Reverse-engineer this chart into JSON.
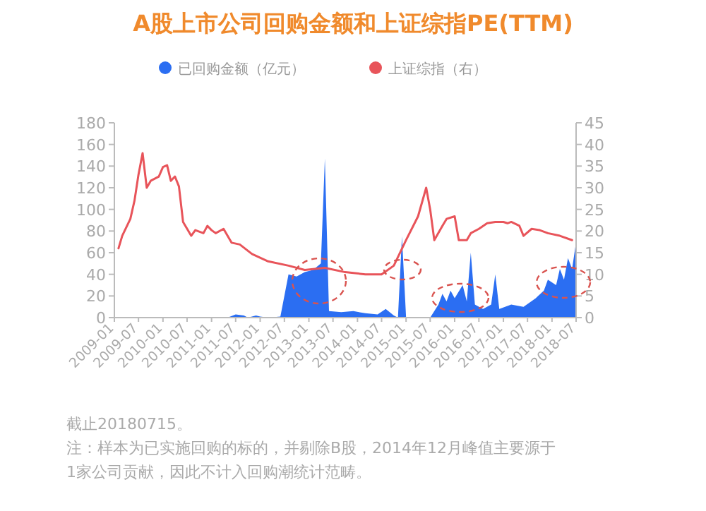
{
  "chart_data": {
    "type": "area",
    "title": "A股上市公司回购金额和上证综指PE(TTM)",
    "legend": "top",
    "xlim": [
      "2009-01",
      "2018-07"
    ],
    "xticks": [
      "2009-01",
      "2009-07",
      "2010-01",
      "2010-07",
      "2011-01",
      "2011-07",
      "2012-01",
      "2012-07",
      "2013-01",
      "2013-07",
      "2014-01",
      "2014-07",
      "2015-01",
      "2015-07",
      "2016-01",
      "2016-07",
      "2017-01",
      "2017-07",
      "2018-01",
      "2018-07"
    ],
    "ylim": [
      0,
      180
    ],
    "yticks": [
      0,
      20,
      40,
      60,
      80,
      100,
      120,
      140,
      160,
      180
    ],
    "y2lim": [
      0,
      45
    ],
    "y2ticks": [
      0,
      5,
      10,
      15,
      20,
      25,
      30,
      35,
      40,
      45
    ],
    "series": [
      {
        "name": "已回购金额（亿元）",
        "color": "#2b6ef2",
        "x": [
          "2009-01",
          "2011-05",
          "2011-07",
          "2011-09",
          "2011-10",
          "2011-12",
          "2012-01",
          "2012-03",
          "2012-06",
          "2012-08",
          "2012-10",
          "2012-12",
          "2013-02",
          "2013-04",
          "2013-05",
          "2013-06",
          "2013-09",
          "2013-12",
          "2014-03",
          "2014-06",
          "2014-08",
          "2014-10",
          "2014-11",
          "2014-12",
          "2015-01",
          "2015-07",
          "2015-09",
          "2015-10",
          "2015-11",
          "2015-12",
          "2016-01",
          "2016-03",
          "2016-04",
          "2016-05",
          "2016-06",
          "2016-08",
          "2016-10",
          "2016-11",
          "2016-12",
          "2017-03",
          "2017-06",
          "2017-09",
          "2017-11",
          "2017-12",
          "2018-02",
          "2018-03",
          "2018-04",
          "2018-05",
          "2018-06",
          "2018-07"
        ],
        "values": [
          0,
          0,
          3,
          2,
          0,
          2,
          1,
          0,
          1,
          40,
          38,
          42,
          44,
          50,
          147,
          6,
          5,
          6,
          4,
          3,
          8,
          2,
          0,
          75,
          0,
          0,
          12,
          22,
          15,
          25,
          18,
          30,
          15,
          60,
          12,
          8,
          12,
          40,
          8,
          12,
          10,
          18,
          25,
          35,
          30,
          45,
          35,
          55,
          45,
          70
        ]
      },
      {
        "type": "line",
        "name": "上证综指（右）",
        "color": "#e8545a",
        "axis": "y2",
        "x": [
          "2009-02",
          "2009-03",
          "2009-05",
          "2009-06",
          "2009-07",
          "2009-08",
          "2009-09",
          "2009-10",
          "2009-12",
          "2010-01",
          "2010-02",
          "2010-03",
          "2010-04",
          "2010-05",
          "2010-06",
          "2010-08",
          "2010-09",
          "2010-11",
          "2010-12",
          "2011-01",
          "2011-02",
          "2011-04",
          "2011-06",
          "2011-08",
          "2011-11",
          "2012-03",
          "2012-08",
          "2012-12",
          "2013-05",
          "2013-10",
          "2014-03",
          "2014-07",
          "2014-10",
          "2015-01",
          "2015-04",
          "2015-06",
          "2015-07",
          "2015-08",
          "2015-10",
          "2015-11",
          "2016-01",
          "2016-02",
          "2016-04",
          "2016-05",
          "2016-07",
          "2016-09",
          "2016-11",
          "2017-01",
          "2017-02",
          "2017-03",
          "2017-05",
          "2017-06",
          "2017-08",
          "2017-10",
          "2017-12",
          "2018-03",
          "2018-06"
        ],
        "values": [
          16,
          18.9,
          22.8,
          27,
          33,
          38,
          30,
          31.6,
          32.6,
          34.8,
          35.2,
          31.6,
          32.6,
          30.3,
          22.1,
          18.9,
          20.2,
          19.5,
          21.2,
          20.2,
          19.5,
          20.5,
          17.3,
          16.9,
          14.7,
          13,
          12,
          11,
          11.5,
          10.5,
          10,
          10,
          12,
          17.9,
          23.4,
          30,
          25,
          17.9,
          21.2,
          22.8,
          23.4,
          17.9,
          17.9,
          19.5,
          20.5,
          21.8,
          22.1,
          22.1,
          21.8,
          22.1,
          21.2,
          18.9,
          20.5,
          20.2,
          19.5,
          18.9,
          17.9
        ]
      }
    ],
    "annotations": [
      "截止20180715。",
      "注：样本为已实施回购的标的，并剔除B股，2014年12月峰值主要源于",
      "1家公司贡献，因此不计入回购潮统计范畴。"
    ]
  }
}
